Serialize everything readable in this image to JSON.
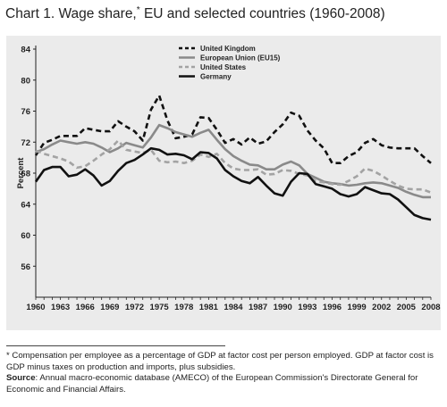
{
  "title": {
    "text": "Chart 1. Wage share,",
    "marker": "*",
    "rest": " EU and selected countries (1960-2008)"
  },
  "footnote": "* Compensation per employee as a percentage of GDP at factor cost per person employed. GDP at factor cost is GDP minus taxes on production and imports, plus subsidies.",
  "source": {
    "label": "Source",
    "text": ": Annual macro-economic database (AMECO) of the European Commission's Directorate General for Economic and Financial Affairs."
  },
  "chart_data": {
    "type": "line",
    "title": "Wage share, EU and selected countries (1960-2008)",
    "xlabel": "",
    "ylabel": "Percent",
    "xlim": [
      1960,
      2008
    ],
    "ylim": [
      52,
      84
    ],
    "yticks": [
      56,
      60,
      64,
      68,
      72,
      76,
      80,
      84
    ],
    "xticks": [
      1960,
      1963,
      1966,
      1969,
      1972,
      1975,
      1978,
      1981,
      1984,
      1987,
      1990,
      1993,
      1996,
      1999,
      2002,
      2005,
      2008
    ],
    "grid": false,
    "legend_position": "top-center",
    "x": [
      1960,
      1961,
      1962,
      1963,
      1964,
      1965,
      1966,
      1967,
      1968,
      1969,
      1970,
      1971,
      1972,
      1973,
      1974,
      1975,
      1976,
      1977,
      1978,
      1979,
      1980,
      1981,
      1982,
      1983,
      1984,
      1985,
      1986,
      1987,
      1988,
      1989,
      1990,
      1991,
      1992,
      1993,
      1994,
      1995,
      1996,
      1997,
      1998,
      1999,
      2000,
      2001,
      2002,
      2003,
      2004,
      2005,
      2006,
      2007,
      2008
    ],
    "series": [
      {
        "name": "United Kingdom",
        "style": "dashed",
        "color": "#111111",
        "values": [
          70.3,
          71.9,
          72.3,
          72.8,
          72.8,
          72.8,
          73.8,
          73.6,
          73.4,
          73.4,
          74.7,
          74.0,
          73.4,
          72.2,
          76.2,
          78.0,
          74.8,
          72.5,
          72.7,
          73.0,
          75.2,
          75.1,
          73.6,
          71.9,
          72.4,
          71.7,
          72.6,
          71.8,
          72.1,
          73.3,
          74.3,
          75.8,
          75.4,
          73.5,
          72.2,
          71.2,
          69.3,
          69.3,
          70.2,
          70.7,
          71.9,
          72.4,
          71.6,
          71.3,
          71.2,
          71.2,
          71.2,
          70.2,
          69.3
        ]
      },
      {
        "name": "European Union (EU15)",
        "style": "solid",
        "color": "#8a8a8a",
        "values": [
          70.7,
          71.1,
          71.7,
          72.2,
          72.0,
          71.8,
          72.0,
          71.8,
          71.3,
          70.7,
          71.2,
          71.9,
          71.6,
          71.3,
          72.6,
          74.2,
          73.8,
          73.3,
          73.0,
          72.7,
          73.2,
          73.6,
          72.3,
          71.1,
          70.2,
          69.6,
          69.1,
          69.0,
          68.5,
          68.5,
          69.1,
          69.5,
          69.0,
          67.9,
          67.4,
          66.9,
          66.7,
          66.6,
          66.4,
          66.5,
          66.7,
          66.8,
          66.7,
          66.4,
          66.1,
          65.6,
          65.2,
          64.9,
          64.9
        ]
      },
      {
        "name": "United States",
        "style": "dashed",
        "color": "#a3a3a3",
        "values": [
          70.9,
          70.5,
          70.2,
          69.9,
          69.5,
          68.7,
          68.9,
          69.6,
          70.4,
          71.1,
          72.2,
          71.0,
          70.8,
          70.6,
          71.0,
          69.6,
          69.4,
          69.5,
          69.3,
          69.6,
          70.4,
          70.1,
          70.5,
          69.3,
          68.6,
          68.4,
          68.4,
          68.5,
          67.8,
          67.9,
          68.4,
          68.3,
          67.9,
          67.7,
          67.0,
          66.8,
          66.6,
          66.5,
          67.0,
          67.6,
          68.6,
          68.3,
          67.7,
          67.0,
          66.4,
          66.0,
          65.9,
          65.9,
          65.5
        ]
      },
      {
        "name": "Germany",
        "style": "solid",
        "color": "#111111",
        "values": [
          66.9,
          68.4,
          68.8,
          68.8,
          67.6,
          67.8,
          68.5,
          67.7,
          66.4,
          67.0,
          68.3,
          69.3,
          69.7,
          70.4,
          71.2,
          71.0,
          70.4,
          70.5,
          70.3,
          69.8,
          70.7,
          70.6,
          69.9,
          68.4,
          67.6,
          67.0,
          66.7,
          67.5,
          66.4,
          65.4,
          65.1,
          66.9,
          68.0,
          67.9,
          66.6,
          66.3,
          66.0,
          65.3,
          65.0,
          65.3,
          66.2,
          65.8,
          65.4,
          65.3,
          64.6,
          63.6,
          62.6,
          62.2,
          62.0
        ]
      }
    ]
  }
}
